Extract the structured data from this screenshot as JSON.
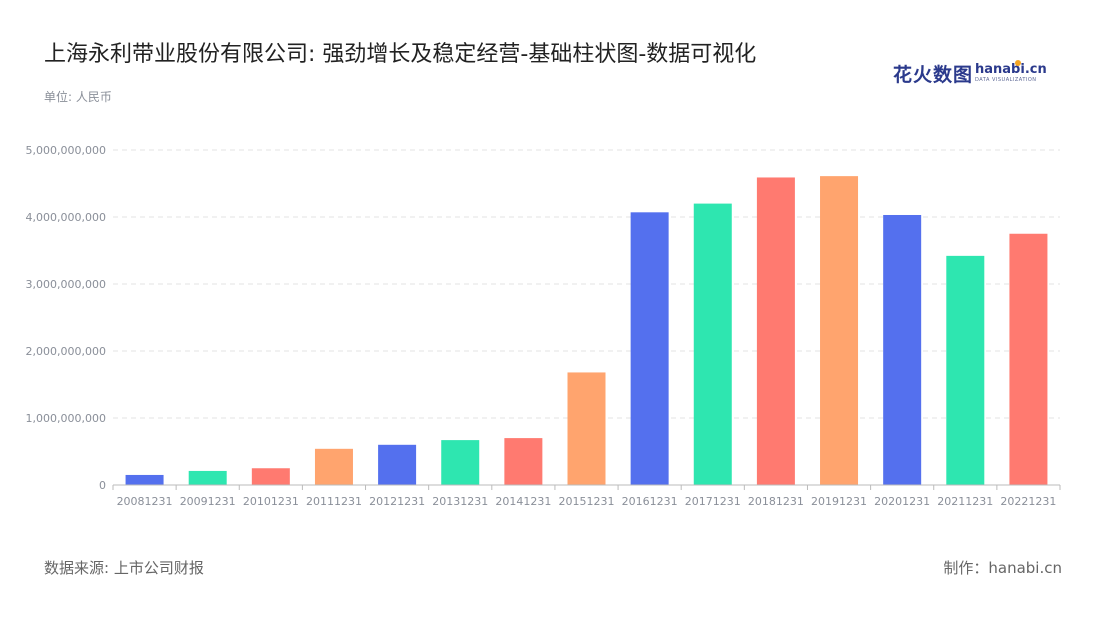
{
  "header": {
    "title": "上海永利带业股份有限公司: 强劲增长及稳定经营-基础柱状图-数据可视化",
    "unit_label": "单位: 人民币"
  },
  "logo": {
    "cn_text": "花火数图",
    "en_text": "hanabi.cn",
    "sub_text": "DATA VISUALIZATION"
  },
  "footer": {
    "source": "数据来源: 上市公司财报",
    "credit": "制作：hanabi.cn"
  },
  "chart_data": {
    "type": "bar",
    "categories": [
      "20081231",
      "20091231",
      "20101231",
      "20111231",
      "20121231",
      "20131231",
      "20141231",
      "20151231",
      "20161231",
      "20171231",
      "20181231",
      "20191231",
      "20201231",
      "20211231",
      "20221231"
    ],
    "values": [
      150000000,
      210000000,
      250000000,
      540000000,
      600000000,
      670000000,
      700000000,
      1680000000,
      4070000000,
      4200000000,
      4590000000,
      4610000000,
      4030000000,
      3420000000,
      3750000000
    ],
    "colors": [
      "#5470ee",
      "#2ee6b0",
      "#ff7a70",
      "#ffa46e"
    ],
    "yticks": [
      "0",
      "1,000,000,000",
      "2,000,000,000",
      "3,000,000,000",
      "4,000,000,000",
      "5,000,000,000"
    ],
    "ylim": [
      0,
      5000000000
    ],
    "grid": true,
    "legend": "none"
  }
}
